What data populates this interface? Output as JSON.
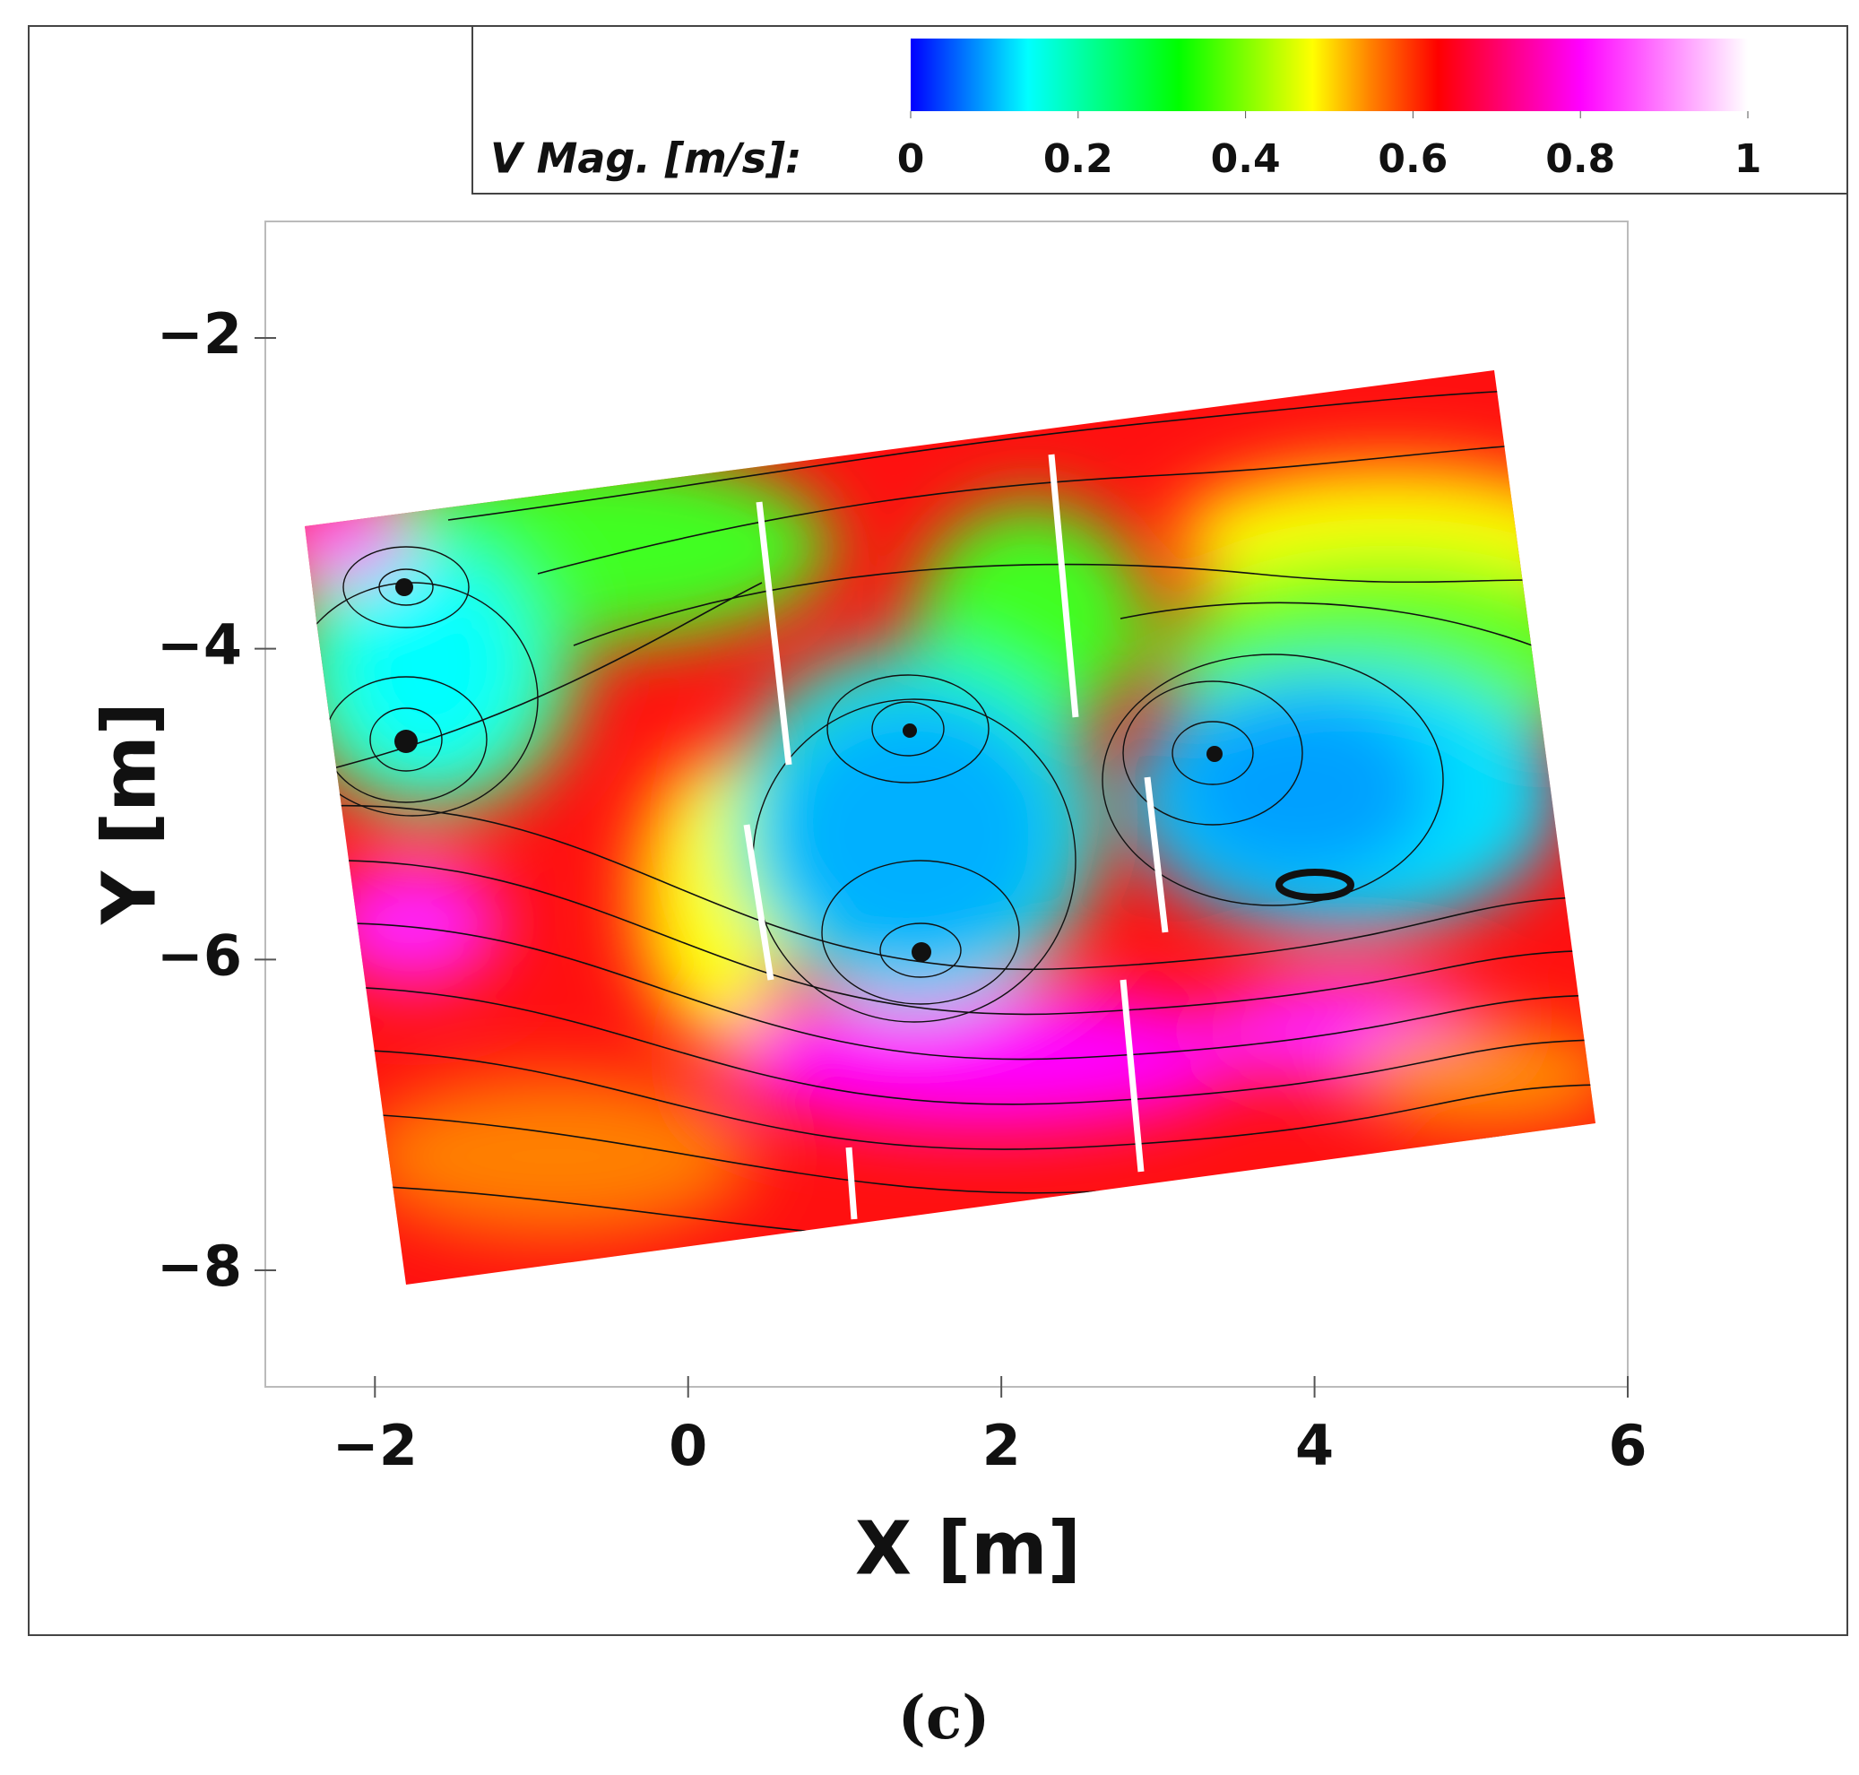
{
  "chart_data": {
    "type": "streamline",
    "x_label": "X [m]",
    "y_label": "Y [m]",
    "caption": "(c)",
    "xlim": [
      -2.7,
      6
    ],
    "ylim": [
      -8.75,
      -1.25
    ],
    "xticks": [
      {
        "value": -2,
        "label": "−2"
      },
      0,
      2,
      4,
      6
    ],
    "yticks": [
      {
        "value": -2,
        "label": "−2"
      },
      {
        "value": -4,
        "label": "−4"
      },
      {
        "value": -6,
        "label": "−6"
      },
      {
        "value": -8,
        "label": "−8"
      }
    ],
    "colorbar": {
      "label": "V Mag. [m/s]:",
      "lim": [
        0,
        1
      ],
      "ticks": [
        0,
        0.2,
        0.4,
        0.6,
        0.8,
        1
      ],
      "colormap": [
        {
          "value": 0,
          "color": "#0000ff"
        },
        {
          "value": 0.14,
          "color": "#00ffff"
        },
        {
          "value": 0.32,
          "color": "#00ff00"
        },
        {
          "value": 0.48,
          "color": "#ffff00"
        },
        {
          "value": 0.55,
          "color": "#ff8000"
        },
        {
          "value": 0.63,
          "color": "#ff0000"
        },
        {
          "value": 0.8,
          "color": "#ff00ff"
        },
        {
          "value": 1,
          "color": "#ffffff"
        }
      ]
    }
  }
}
